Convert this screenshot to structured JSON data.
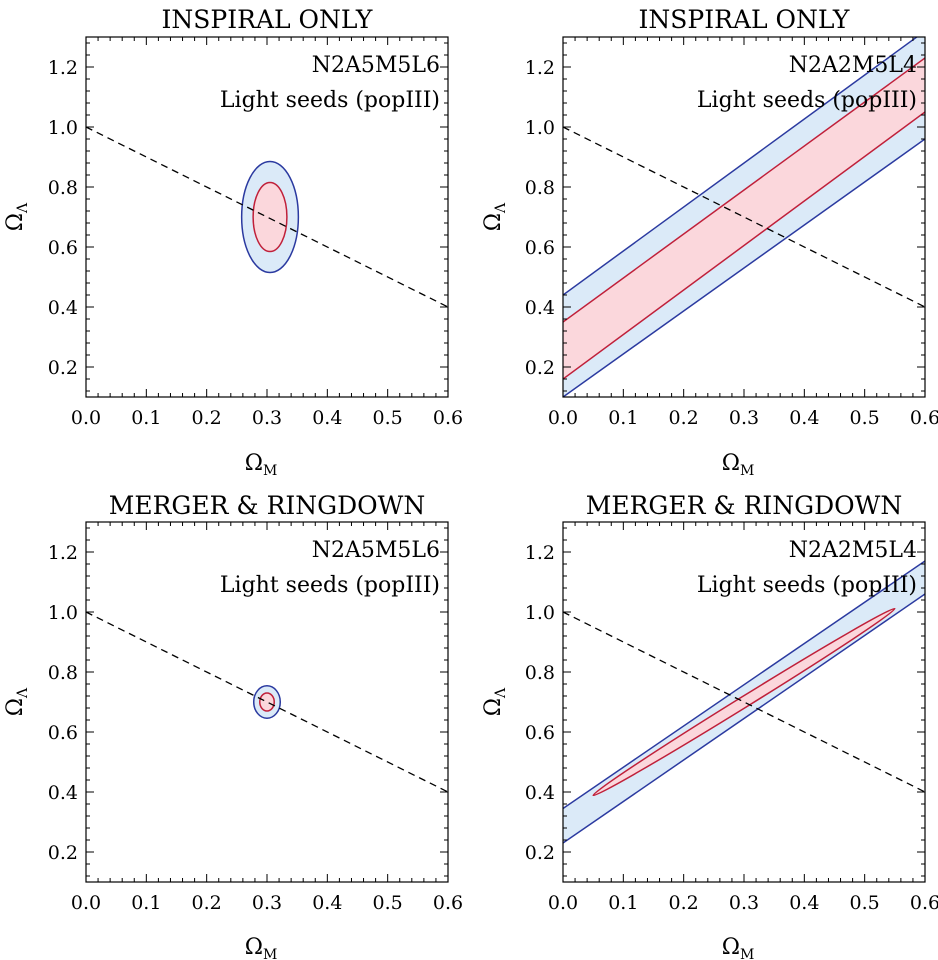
{
  "chart_data": [
    {
      "type": "contour",
      "title": "INSPIRAL ONLY",
      "annotations": [
        "N2A5M5L6",
        "Light seeds (popIII)"
      ],
      "xlabel": "Ω",
      "xlabel_sub": "M",
      "ylabel": "Ω",
      "ylabel_sub": "Λ",
      "xlim": [
        0.0,
        0.6
      ],
      "ylim": [
        0.1,
        1.3
      ],
      "xticks": [
        "0.0",
        "0.1",
        "0.2",
        "0.3",
        "0.4",
        "0.5",
        "0.6"
      ],
      "yticks": [
        "0.2",
        "0.4",
        "0.6",
        "0.8",
        "1.0",
        "1.2"
      ],
      "grid": false,
      "flat_universe_line": {
        "style": "dashed",
        "points": [
          [
            0.0,
            1.0
          ],
          [
            0.6,
            0.4
          ]
        ]
      },
      "contours": [
        {
          "level": "outer",
          "center": [
            0.305,
            0.7
          ],
          "semi_x": 0.047,
          "semi_y": 0.185,
          "tilt": 0.0
        },
        {
          "level": "inner",
          "center": [
            0.305,
            0.7
          ],
          "semi_x": 0.028,
          "semi_y": 0.115,
          "tilt": 0.0
        }
      ]
    },
    {
      "type": "contour",
      "title": "INSPIRAL ONLY",
      "annotations": [
        "N2A2M5L4",
        "Light seeds (popIII)"
      ],
      "xlabel": "Ω",
      "xlabel_sub": "M",
      "ylabel": "Ω",
      "ylabel_sub": "Λ",
      "xlim": [
        0.0,
        0.6
      ],
      "ylim": [
        0.1,
        1.3
      ],
      "xticks": [
        "0.0",
        "0.1",
        "0.2",
        "0.3",
        "0.4",
        "0.5",
        "0.6"
      ],
      "yticks": [
        "0.2",
        "0.4",
        "0.6",
        "0.8",
        "1.0",
        "1.2"
      ],
      "grid": false,
      "flat_universe_line": {
        "style": "dashed",
        "points": [
          [
            0.0,
            1.0
          ],
          [
            0.6,
            0.4
          ]
        ]
      },
      "bands": [
        {
          "level": "outer",
          "lower": [
            [
              0.0,
              0.1
            ],
            [
              0.6,
              0.96
            ]
          ],
          "upper": [
            [
              0.0,
              0.44
            ],
            [
              0.6,
              1.32
            ]
          ]
        },
        {
          "level": "inner",
          "lower": [
            [
              0.0,
              0.16
            ],
            [
              0.6,
              1.05
            ]
          ],
          "upper": [
            [
              0.0,
              0.35
            ],
            [
              0.6,
              1.23
            ]
          ]
        }
      ]
    },
    {
      "type": "contour",
      "title": "MERGER & RINGDOWN",
      "annotations": [
        "N2A5M5L6",
        "Light seeds (popIII)"
      ],
      "xlabel": "Ω",
      "xlabel_sub": "M",
      "ylabel": "Ω",
      "ylabel_sub": "Λ",
      "xlim": [
        0.0,
        0.6
      ],
      "ylim": [
        0.1,
        1.3
      ],
      "xticks": [
        "0.0",
        "0.1",
        "0.2",
        "0.3",
        "0.4",
        "0.5",
        "0.6"
      ],
      "yticks": [
        "0.2",
        "0.4",
        "0.6",
        "0.8",
        "1.0",
        "1.2"
      ],
      "grid": false,
      "flat_universe_line": {
        "style": "dashed",
        "points": [
          [
            0.0,
            1.0
          ],
          [
            0.6,
            0.4
          ]
        ]
      },
      "contours": [
        {
          "level": "outer",
          "center": [
            0.3,
            0.7
          ],
          "semi_x": 0.022,
          "semi_y": 0.054,
          "tilt": 0.0
        },
        {
          "level": "inner",
          "center": [
            0.3,
            0.7
          ],
          "semi_x": 0.012,
          "semi_y": 0.03,
          "tilt": 0.0
        }
      ]
    },
    {
      "type": "contour",
      "title": "MERGER & RINGDOWN",
      "annotations": [
        "N2A2M5L4",
        "Light seeds (popIII)"
      ],
      "xlabel": "Ω",
      "xlabel_sub": "M",
      "ylabel": "Ω",
      "ylabel_sub": "Λ",
      "xlim": [
        0.0,
        0.6
      ],
      "ylim": [
        0.1,
        1.3
      ],
      "xticks": [
        "0.0",
        "0.1",
        "0.2",
        "0.3",
        "0.4",
        "0.5",
        "0.6"
      ],
      "yticks": [
        "0.2",
        "0.4",
        "0.6",
        "0.8",
        "1.0",
        "1.2"
      ],
      "grid": false,
      "flat_universe_line": {
        "style": "dashed",
        "points": [
          [
            0.0,
            1.0
          ],
          [
            0.6,
            0.4
          ]
        ]
      },
      "bands": [
        {
          "level": "outer",
          "lower": [
            [
              0.0,
              0.23
            ],
            [
              0.6,
              1.06
            ]
          ],
          "upper": [
            [
              0.0,
              0.345
            ],
            [
              0.6,
              1.17
            ]
          ]
        }
      ],
      "contours": [
        {
          "level": "inner",
          "center": [
            0.3,
            0.7
          ],
          "semi_x": 0.25,
          "semi_y": 0.018,
          "tilt": 1.245,
          "tilt_units": "slope dΩΛ/dΩM"
        }
      ]
    }
  ],
  "colors": {
    "outer_fill": "#dbeaf8",
    "outer_stroke": "#2b3aa0",
    "inner_fill": "#fbd7dc",
    "inner_stroke": "#c0203a",
    "axis": "#000000",
    "dashed_line": "#000000"
  }
}
